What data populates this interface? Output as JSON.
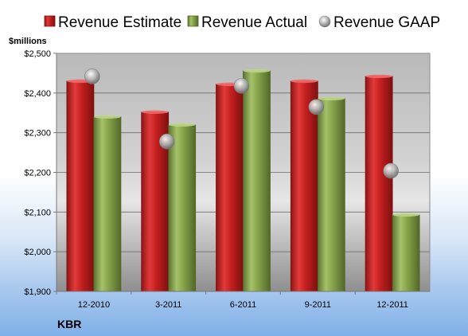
{
  "chart_data": {
    "type": "bar",
    "categories": [
      "12-2010",
      "3-2011",
      "6-2011",
      "9-2011",
      "12-2011"
    ],
    "series": [
      {
        "name": "Revenue Estimate",
        "kind": "bar",
        "color": "#d92b2b",
        "values": [
          2430,
          2352,
          2422,
          2430,
          2442
        ]
      },
      {
        "name": "Revenue Actual",
        "kind": "bar",
        "color": "#8aa84a",
        "values": [
          2340,
          2320,
          2456,
          2386,
          2093
        ]
      },
      {
        "name": "Revenue GAAP",
        "kind": "marker",
        "color": "#a9a9a9",
        "values": [
          2442,
          2278,
          2418,
          2365,
          2204
        ]
      }
    ],
    "ylabel": "$millions",
    "ylim": [
      1900,
      2500
    ],
    "yticks": [
      1900,
      2000,
      2100,
      2200,
      2300,
      2400,
      2500
    ],
    "ytick_labels": [
      "$1,900",
      "$2,000",
      "$2,100",
      "$2,200",
      "$2,300",
      "$2,400",
      "$2,500"
    ],
    "grid": true,
    "legend_position": "top",
    "footer": "KBR"
  }
}
